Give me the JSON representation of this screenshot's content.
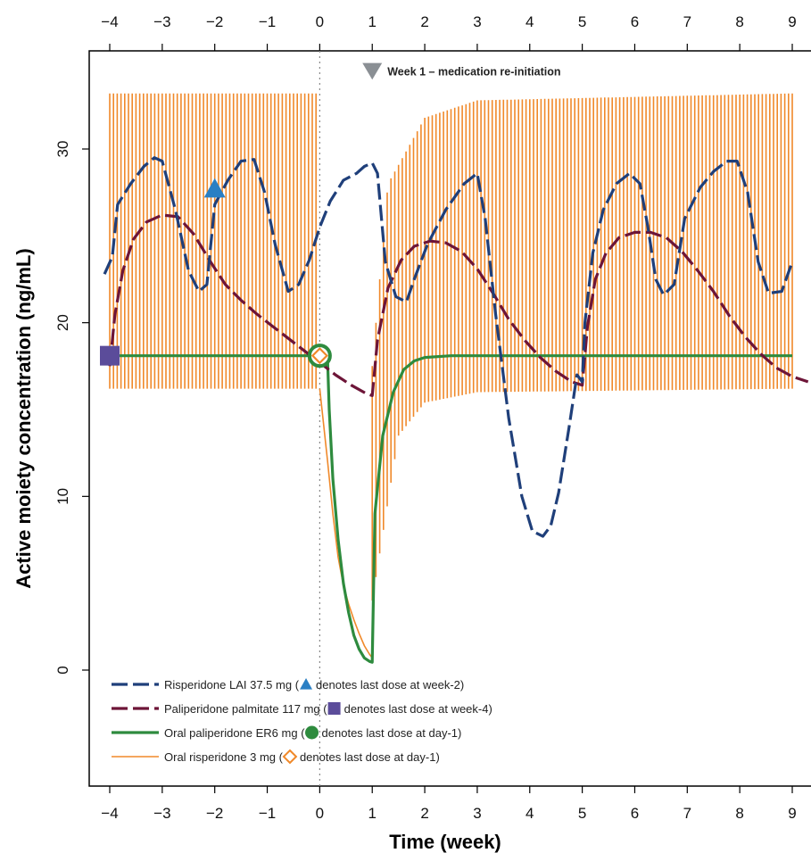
{
  "chart_data": {
    "type": "line",
    "xlabel": "Time (week)",
    "ylabel": "Active moiety concentration (ng/mL)",
    "xlim": [
      -4.3,
      9.35
    ],
    "ylim": [
      -6.5,
      35.2
    ],
    "x_ticks": [
      -4,
      -3,
      -2,
      -1,
      0,
      1,
      2,
      3,
      4,
      5,
      6,
      7,
      8,
      9
    ],
    "x_tick_labels_bottom": [
      "−4",
      "−3",
      "−2",
      "−1",
      "0",
      "1",
      "2",
      "3",
      "4",
      "5",
      "6",
      "7",
      "8",
      "9"
    ],
    "x_tick_labels_top": [
      "−4",
      "−3",
      "−2",
      "−1",
      "0",
      "1",
      "2",
      "3",
      "4",
      "5",
      "6",
      "7",
      "8",
      "9"
    ],
    "y_ticks": [
      0,
      10,
      20,
      30
    ],
    "y_tick_labels": [
      "0",
      "10",
      "20",
      "30"
    ],
    "grid": false,
    "legend_position": "bottom-left",
    "annotations": [
      {
        "text": "Week 1 – medication re-initiation",
        "x": 1,
        "y": 34.5,
        "marker": "down-triangle",
        "color": "#8a8f94"
      }
    ],
    "reference_lines": [
      {
        "x": 0,
        "style": "dotted",
        "color": "#888888"
      }
    ],
    "series": [
      {
        "name": "Risperidone LAI 37.5 mg (",
        "legend_suffix": "denotes last dose at week-2)",
        "color": "#1f3f7a",
        "style": "dashed",
        "marker": {
          "shape": "triangle",
          "color": "#2a7fc4",
          "x": -2,
          "y": 27.7
        },
        "x": [
          -4.1,
          -3.95,
          -3.85,
          -3.6,
          -3.35,
          -3.15,
          -3.0,
          -2.75,
          -2.5,
          -2.3,
          -2.15,
          -2.0,
          -1.75,
          -1.5,
          -1.25,
          -1.05,
          -0.85,
          -0.6,
          -0.4,
          -0.2,
          0.0,
          0.2,
          0.45,
          0.7,
          0.85,
          1.0,
          1.1,
          1.25,
          1.45,
          1.65,
          1.8,
          2.05,
          2.4,
          2.75,
          3.0,
          3.15,
          3.35,
          3.6,
          3.85,
          4.05,
          4.25,
          4.4,
          4.55,
          4.75,
          4.9,
          5.0,
          5.05,
          5.2,
          5.4,
          5.65,
          5.9,
          6.1,
          6.25,
          6.4,
          6.55,
          6.75,
          6.95,
          7.25,
          7.5,
          7.75,
          7.95,
          8.15,
          8.35,
          8.55,
          8.8,
          9.0
        ],
        "y": [
          22.8,
          23.8,
          26.8,
          28.0,
          29.0,
          29.5,
          29.3,
          26.5,
          23.0,
          21.8,
          22.2,
          26.8,
          28.2,
          29.3,
          29.4,
          27.5,
          24.5,
          21.8,
          22.2,
          23.6,
          25.5,
          27.0,
          28.2,
          28.6,
          29.0,
          29.2,
          28.6,
          23.5,
          21.5,
          21.2,
          22.5,
          24.5,
          26.5,
          28.0,
          28.6,
          26.0,
          20.5,
          14.5,
          10.0,
          8.0,
          7.7,
          8.3,
          10.2,
          14.0,
          17.0,
          16.6,
          20.0,
          24.0,
          26.5,
          28.0,
          28.6,
          28.0,
          25.5,
          22.5,
          21.6,
          22.2,
          26.0,
          27.8,
          28.7,
          29.3,
          29.3,
          27.5,
          23.5,
          21.7,
          21.8,
          23.5
        ]
      },
      {
        "name": "Paliperidone palmitate 117 mg (",
        "legend_suffix": "denotes last dose at week-4)",
        "color": "#6d1538",
        "style": "dashed",
        "marker": {
          "shape": "square",
          "color": "#5b4c9a",
          "x": -4,
          "y": 18.1
        },
        "x": [
          -4.0,
          -3.9,
          -3.75,
          -3.55,
          -3.3,
          -3.0,
          -2.7,
          -2.4,
          -2.1,
          -1.8,
          -1.5,
          -1.2,
          -0.9,
          -0.6,
          -0.3,
          0.0,
          0.3,
          0.6,
          0.9,
          1.0,
          1.1,
          1.3,
          1.55,
          1.8,
          2.1,
          2.4,
          2.7,
          3.0,
          3.3,
          3.6,
          3.9,
          4.2,
          4.5,
          4.8,
          5.0,
          5.1,
          5.25,
          5.45,
          5.7,
          6.0,
          6.3,
          6.6,
          6.9,
          7.2,
          7.5,
          7.8,
          8.1,
          8.4,
          8.7,
          9.0,
          9.3
        ],
        "y": [
          17.5,
          20.5,
          23.0,
          24.8,
          25.8,
          26.2,
          26.1,
          25.1,
          23.6,
          22.2,
          21.3,
          20.5,
          19.8,
          19.1,
          18.4,
          17.7,
          17.0,
          16.4,
          15.9,
          15.8,
          19.0,
          22.0,
          23.6,
          24.4,
          24.7,
          24.6,
          24.1,
          23.1,
          21.7,
          20.2,
          19.0,
          18.0,
          17.2,
          16.6,
          16.4,
          19.8,
          22.5,
          24.0,
          24.9,
          25.2,
          25.2,
          24.9,
          24.1,
          23.0,
          21.8,
          20.4,
          19.2,
          18.2,
          17.4,
          16.9,
          16.6
        ]
      },
      {
        "name": "Oral paliperidone ER6  mg (",
        "legend_suffix": "denotes last dose at day-1)",
        "color": "#2e8b3e",
        "style": "solid",
        "marker": {
          "shape": "filled-circle",
          "color": "#2e8b3e",
          "x": 0,
          "y": 18.1
        },
        "x": [
          -4.0,
          -3.0,
          -2.0,
          -1.0,
          0.0,
          0.15,
          0.18,
          0.25,
          0.35,
          0.45,
          0.55,
          0.65,
          0.75,
          0.85,
          0.95,
          1.0,
          1.05,
          1.2,
          1.4,
          1.6,
          1.8,
          2.0,
          2.5,
          3.0,
          4.0,
          5.0,
          6.0,
          7.0,
          8.0,
          9.0
        ],
        "y": [
          18.1,
          18.1,
          18.1,
          18.1,
          18.1,
          17.8,
          15.0,
          11.0,
          7.5,
          5.0,
          3.3,
          2.0,
          1.2,
          0.7,
          0.5,
          0.45,
          9.0,
          13.5,
          16.0,
          17.3,
          17.8,
          18.0,
          18.1,
          18.1,
          18.1,
          18.1,
          18.1,
          18.1,
          18.1,
          18.1
        ]
      },
      {
        "name": "Oral risperidone 3 mg (",
        "legend_suffix": "denotes last dose at day-1)",
        "color": "#f0892a",
        "style": "solid",
        "marker": {
          "shape": "open-diamond",
          "color": "#f0892a",
          "x": 0,
          "y": 18.1
        },
        "trough_before": 16.2,
        "peak_before": 33.2,
        "decay_x": [
          0.0,
          0.15,
          0.25,
          0.35,
          0.45,
          0.55,
          0.65,
          0.75,
          0.85,
          0.95,
          1.0
        ],
        "decay_y": [
          16.2,
          12.0,
          9.0,
          6.5,
          4.9,
          3.8,
          2.9,
          2.1,
          1.4,
          0.9,
          0.7
        ],
        "trough_after": [
          {
            "x": 1.0,
            "y": 4.0
          },
          {
            "x": 1.5,
            "y": 13.5
          },
          {
            "x": 2.0,
            "y": 15.4
          },
          {
            "x": 3.0,
            "y": 16.0
          },
          {
            "x": 9.0,
            "y": 16.2
          }
        ],
        "peak_after": [
          {
            "x": 1.0,
            "y": 17.5
          },
          {
            "x": 1.3,
            "y": 28.0
          },
          {
            "x": 2.0,
            "y": 31.8
          },
          {
            "x": 3.0,
            "y": 32.8
          },
          {
            "x": 9.0,
            "y": 33.2
          }
        ]
      }
    ]
  }
}
